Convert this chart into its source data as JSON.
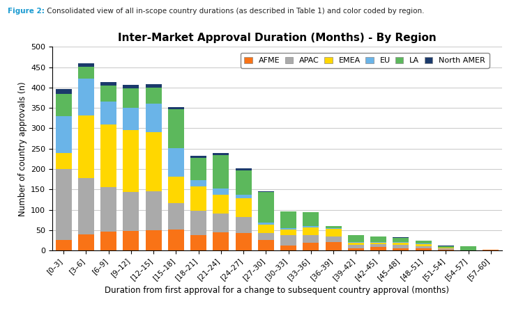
{
  "title": "Inter-Market Approval Duration (Months) - By Region",
  "xlabel": "Duration from first approval for a change to subsequent country approval (months)",
  "ylabel": "Number of country approvals (n)",
  "figure_label": "Figure 2:",
  "figure_text": " Consolidated view of all in-scope country durations (as described in Table 1) and color coded by region.",
  "categories": [
    "[0–3]",
    "[3–6]",
    "[6–9]",
    "[9–12]",
    "[12–15]",
    "[15–18]",
    "[18–21]",
    "[21–24]",
    "[24–27]",
    "[27–30]",
    "[30–33]",
    "[33–36]",
    "[36–39]",
    "[39–42]",
    "[42–45]",
    "[45–48]",
    "[48–51]",
    "[51–54]",
    "[54–57]",
    "[57–60]"
  ],
  "regions": [
    "AFME",
    "APAC",
    "EMEA",
    "EU",
    "LA",
    "North AMER"
  ],
  "colors": [
    "#F97316",
    "#AAAAAA",
    "#FFD700",
    "#6AB4E8",
    "#5CB85C",
    "#1B3A6B"
  ],
  "data": {
    "AFME": [
      25,
      40,
      47,
      48,
      50,
      52,
      38,
      45,
      42,
      25,
      12,
      18,
      20,
      5,
      8,
      5,
      5,
      2,
      0,
      2
    ],
    "APAC": [
      175,
      137,
      108,
      96,
      95,
      65,
      60,
      45,
      40,
      18,
      25,
      20,
      15,
      8,
      8,
      8,
      5,
      3,
      0,
      0
    ],
    "EMEA": [
      40,
      155,
      155,
      152,
      145,
      65,
      60,
      47,
      47,
      20,
      15,
      18,
      18,
      5,
      3,
      5,
      5,
      2,
      0,
      0
    ],
    "EU": [
      90,
      90,
      55,
      55,
      70,
      70,
      15,
      15,
      8,
      5,
      3,
      3,
      2,
      2,
      2,
      2,
      2,
      0,
      0,
      0
    ],
    "LA": [
      55,
      30,
      40,
      47,
      40,
      95,
      55,
      82,
      60,
      75,
      40,
      35,
      4,
      18,
      13,
      10,
      7,
      3,
      10,
      0
    ],
    "North AMER": [
      12,
      8,
      8,
      8,
      8,
      5,
      5,
      5,
      5,
      2,
      0,
      0,
      0,
      0,
      0,
      3,
      0,
      2,
      0,
      0
    ]
  },
  "ylim": [
    0,
    500
  ],
  "yticks": [
    0,
    50,
    100,
    150,
    200,
    250,
    300,
    350,
    400,
    450,
    500
  ],
  "background_color": "#FFFFFF",
  "grid_color": "#CCCCCC"
}
